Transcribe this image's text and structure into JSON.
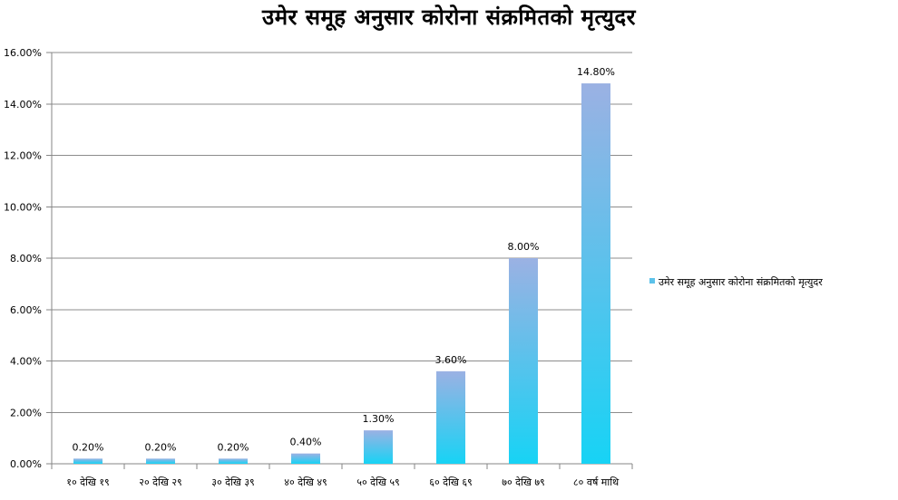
{
  "chart_data": {
    "type": "bar",
    "title": "उमेर समूह अनुसार कोरोना संक्रमितको मृत्युदर",
    "categories": [
      "१० देखि १९",
      "२० देखि २९",
      "३० देखि ३९",
      "४० देखि ४९",
      "५० देखि ५९",
      "६० देखि ६९",
      "७० देखि ७९",
      "८० वर्ष माथि"
    ],
    "series": [
      {
        "name": "उमेर समूह अनुसार कोरोना संक्रमितको मृत्युदर",
        "values": [
          0.2,
          0.2,
          0.2,
          0.4,
          1.3,
          3.6,
          8.0,
          14.8
        ]
      }
    ],
    "data_labels": [
      "0.20%",
      "0.20%",
      "0.20%",
      "0.40%",
      "1.30%",
      "3.60%",
      "8.00%",
      "14.80%"
    ],
    "y_ticks": [
      "0.00%",
      "2.00%",
      "4.00%",
      "6.00%",
      "8.00%",
      "10.00%",
      "12.00%",
      "14.00%",
      "16.00%"
    ],
    "ylim": [
      0,
      16
    ],
    "grid": true,
    "legend_position": "right",
    "colors": {
      "bar_top": "#9bb1e3",
      "bar_bottom": "#17d3f5",
      "legend_swatch": "#5cc2ea",
      "gridline": "#8c8c8c"
    }
  }
}
